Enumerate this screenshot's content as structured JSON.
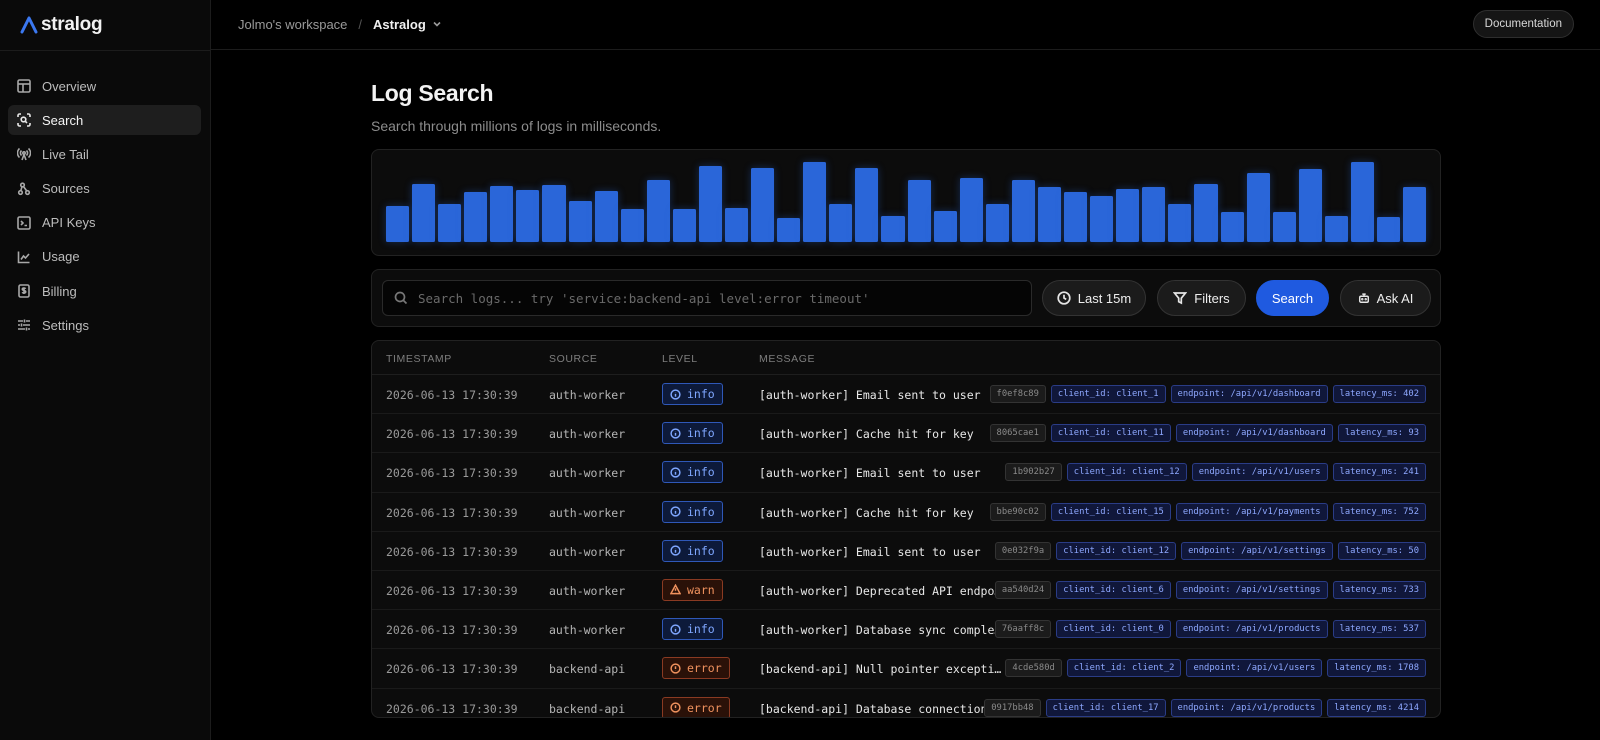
{
  "brand": {
    "name": "stralog",
    "accent": "#2a66d9"
  },
  "breadcrumb": {
    "workspace": "Jolmo's workspace",
    "separator": "/",
    "project": "Astralog"
  },
  "header": {
    "docs_label": "Documentation"
  },
  "sidebar": {
    "items": [
      {
        "label": "Overview",
        "icon": "layout-icon",
        "active": false
      },
      {
        "label": "Search",
        "icon": "scan-search-icon",
        "active": true
      },
      {
        "label": "Live Tail",
        "icon": "radio-tower-icon",
        "active": false
      },
      {
        "label": "Sources",
        "icon": "git-branch-icon",
        "active": false
      },
      {
        "label": "API Keys",
        "icon": "terminal-icon",
        "active": false
      },
      {
        "label": "Usage",
        "icon": "line-chart-icon",
        "active": false
      },
      {
        "label": "Billing",
        "icon": "dollar-icon",
        "active": false
      },
      {
        "label": "Settings",
        "icon": "sliders-icon",
        "active": false
      }
    ]
  },
  "page": {
    "title": "Log Search",
    "subtitle": "Search through millions of logs in milliseconds."
  },
  "histogram": {
    "color": "#2a66d9",
    "values": [
      45,
      73,
      48,
      62,
      70,
      65,
      71,
      51,
      64,
      41,
      78,
      41,
      95,
      43,
      92,
      30,
      100,
      47,
      93,
      32,
      77,
      39,
      80,
      47,
      78,
      69,
      62,
      57,
      66,
      69,
      48,
      73,
      38,
      86,
      37,
      91,
      33,
      100,
      31,
      69
    ]
  },
  "search": {
    "placeholder": "Search logs... try 'service:backend-api level:error timeout'",
    "time_label": "Last 15m",
    "filters_label": "Filters",
    "search_label": "Search",
    "ai_label": "Ask AI"
  },
  "table": {
    "columns": [
      "TIMESTAMP",
      "SOURCE",
      "LEVEL",
      "MESSAGE"
    ],
    "rows": [
      {
        "timestamp": "2026-06-13 17:30:39",
        "source": "auth-worker",
        "level": "info",
        "message": "[auth-worker] Email sent to user",
        "id": "f0ef8c89",
        "client": "client_id: client_1",
        "endpoint": "endpoint: /api/v1/dashboard",
        "latency": "latency_ms: 402"
      },
      {
        "timestamp": "2026-06-13 17:30:39",
        "source": "auth-worker",
        "level": "info",
        "message": "[auth-worker] Cache hit for key",
        "id": "8065cae1",
        "client": "client_id: client_11",
        "endpoint": "endpoint: /api/v1/dashboard",
        "latency": "latency_ms: 93"
      },
      {
        "timestamp": "2026-06-13 17:30:39",
        "source": "auth-worker",
        "level": "info",
        "message": "[auth-worker] Email sent to user",
        "id": "1b902b27",
        "client": "client_id: client_12",
        "endpoint": "endpoint: /api/v1/users",
        "latency": "latency_ms: 241"
      },
      {
        "timestamp": "2026-06-13 17:30:39",
        "source": "auth-worker",
        "level": "info",
        "message": "[auth-worker] Cache hit for key",
        "id": "bbe90c02",
        "client": "client_id: client_15",
        "endpoint": "endpoint: /api/v1/payments",
        "latency": "latency_ms: 752"
      },
      {
        "timestamp": "2026-06-13 17:30:39",
        "source": "auth-worker",
        "level": "info",
        "message": "[auth-worker] Email sent to user",
        "id": "0e032f9a",
        "client": "client_id: client_12",
        "endpoint": "endpoint: /api/v1/settings",
        "latency": "latency_ms: 50"
      },
      {
        "timestamp": "2026-06-13 17:30:39",
        "source": "auth-worker",
        "level": "warn",
        "message": "[auth-worker] Deprecated API endpoint called",
        "id": "aa540d24",
        "client": "client_id: client_6",
        "endpoint": "endpoint: /api/v1/settings",
        "latency": "latency_ms: 733"
      },
      {
        "timestamp": "2026-06-13 17:30:39",
        "source": "auth-worker",
        "level": "info",
        "message": "[auth-worker] Database sync completed",
        "id": "76aaff8c",
        "client": "client_id: client_0",
        "endpoint": "endpoint: /api/v1/products",
        "latency": "latency_ms: 537"
      },
      {
        "timestamp": "2026-06-13 17:30:39",
        "source": "backend-api",
        "level": "error",
        "message": "[backend-api] Null pointer exception in handler",
        "id": "4cde580d",
        "client": "client_id: client_2",
        "endpoint": "endpoint: /api/v1/users",
        "latency": "latency_ms: 1708"
      },
      {
        "timestamp": "2026-06-13 17:30:39",
        "source": "backend-api",
        "level": "error",
        "message": "[backend-api] Database connection timeout",
        "id": "0917bb48",
        "client": "client_id: client_17",
        "endpoint": "endpoint: /api/v1/products",
        "latency": "latency_ms: 4214"
      }
    ]
  }
}
